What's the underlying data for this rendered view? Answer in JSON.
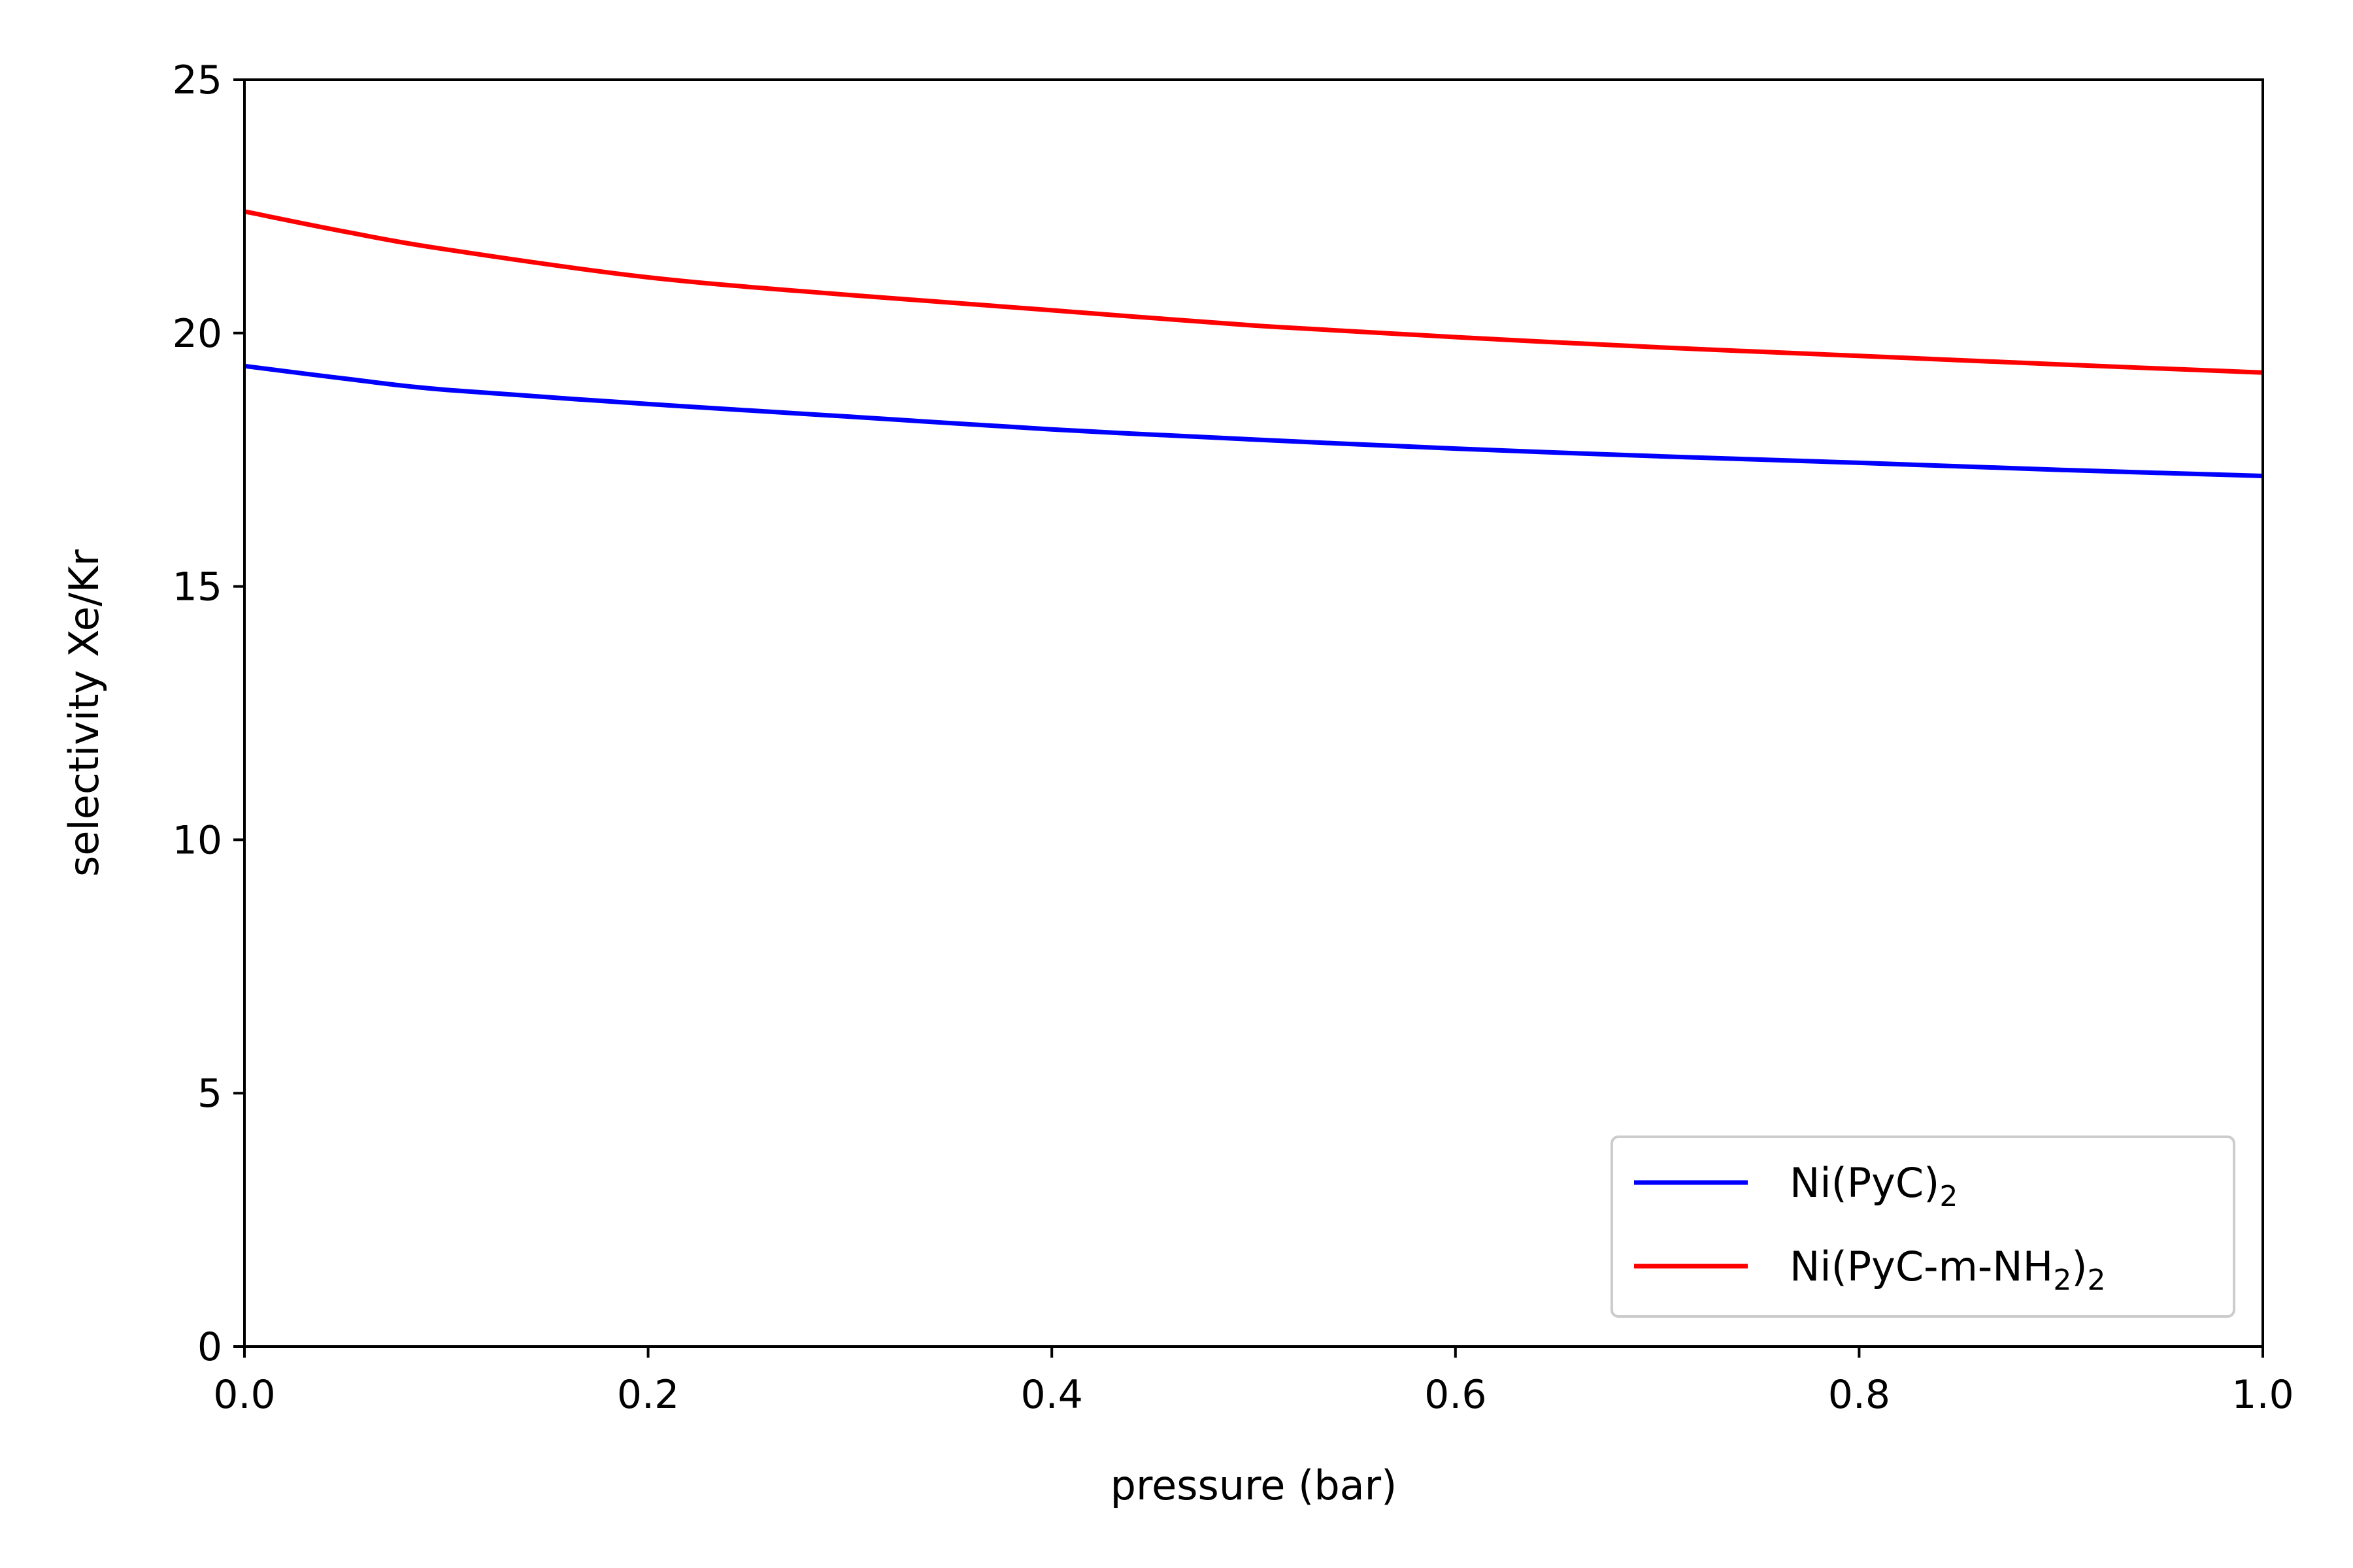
{
  "chart_data": {
    "type": "line",
    "title": "",
    "xlabel": "pressure (bar)",
    "ylabel": "selectivity Xe/Kr",
    "xlim": [
      0.0,
      1.0
    ],
    "ylim": [
      0,
      25
    ],
    "x_ticks": [
      "0.0",
      "0.2",
      "0.4",
      "0.6",
      "0.8",
      "1.0"
    ],
    "y_ticks": [
      "0",
      "5",
      "10",
      "15",
      "20",
      "25"
    ],
    "grid": false,
    "legend_position": "bottom-right",
    "x": [
      0.0,
      0.05,
      0.1,
      0.2,
      0.3,
      0.4,
      0.5,
      0.6,
      0.7,
      0.8,
      0.9,
      1.0
    ],
    "series": [
      {
        "name": "Ni(PyC)2",
        "label_main": "Ni(PyC)",
        "label_sub": "2",
        "label_tail": "",
        "color": "#0000ff",
        "values": [
          19.35,
          19.1,
          18.88,
          18.6,
          18.35,
          18.1,
          17.9,
          17.72,
          17.57,
          17.44,
          17.3,
          17.18
        ]
      },
      {
        "name": "Ni(PyC-m-NH2)2",
        "label_main": "Ni(PyC-m-NH",
        "label_sub": "2",
        "label_tail": ")",
        "label_sub2": "2",
        "color": "#ff0000",
        "values": [
          22.4,
          22.0,
          21.65,
          21.1,
          20.75,
          20.45,
          20.15,
          19.92,
          19.72,
          19.55,
          19.38,
          19.22
        ]
      }
    ]
  }
}
